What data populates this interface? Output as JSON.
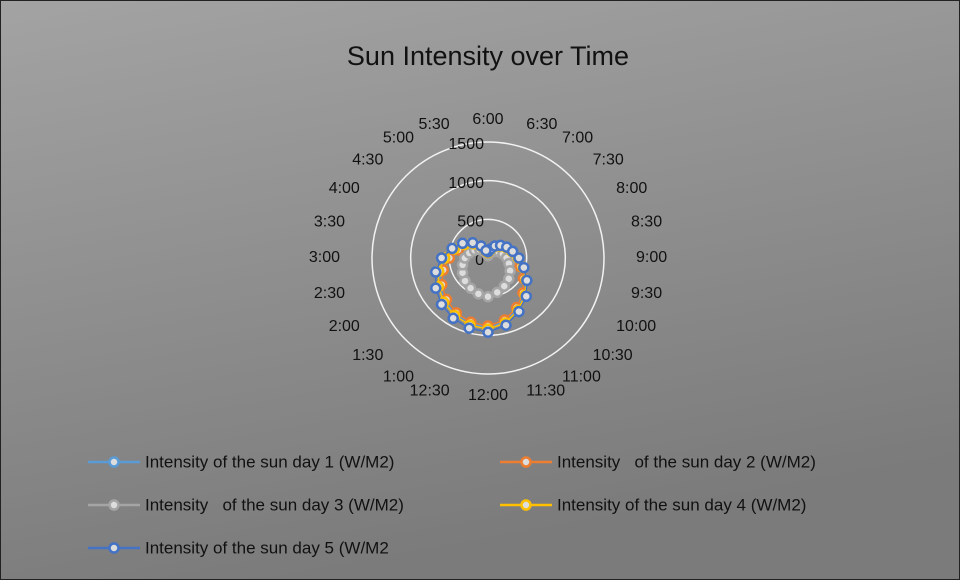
{
  "chart_data": {
    "type": "radar",
    "title": "Sun Intensity over Time",
    "categories": [
      "6:00",
      "6:30",
      "7:00",
      "7:30",
      "8:00",
      "8:30",
      "9:00",
      "9:30",
      "10:00",
      "10:30",
      "11:00",
      "11:30",
      "12:00",
      "12:30",
      "1:00",
      "1:30",
      "2:00",
      "2:30",
      "3:00",
      "3:30",
      "4:00",
      "4:30",
      "5:00",
      "5:30"
    ],
    "rlim": [
      0,
      1500
    ],
    "rticks": [
      0,
      500,
      1000,
      1500
    ],
    "grid": true,
    "series": [
      {
        "name": "Intensity of the sun day 1 (W/M2)",
        "color": "#5b9bd5",
        "values": [
          60,
          100,
          150,
          200,
          250,
          300,
          360,
          440,
          540,
          650,
          760,
          850,
          900,
          880,
          840,
          790,
          720,
          640,
          540,
          430,
          330,
          240,
          150,
          80
        ]
      },
      {
        "name": "Intensity   of the sun day 2 (W/M2)",
        "color": "#ed7d31",
        "values": [
          50,
          90,
          140,
          190,
          240,
          290,
          350,
          430,
          530,
          640,
          740,
          830,
          880,
          860,
          820,
          760,
          690,
          600,
          500,
          400,
          300,
          210,
          130,
          70
        ]
      },
      {
        "name": "Intensity   of the sun day 3 (W/M2)",
        "color": "#a5a5a5",
        "values": [
          30,
          60,
          90,
          120,
          160,
          200,
          240,
          280,
          330,
          380,
          420,
          460,
          500,
          480,
          450,
          420,
          380,
          340,
          300,
          250,
          200,
          150,
          100,
          50
        ]
      },
      {
        "name": "Intensity of the sun day 4 (W/M2)",
        "color": "#ffc000",
        "values": [
          70,
          110,
          170,
          220,
          270,
          320,
          390,
          470,
          570,
          680,
          780,
          870,
          920,
          900,
          860,
          810,
          740,
          660,
          560,
          450,
          350,
          260,
          170,
          90
        ]
      },
      {
        "name": "Intensity of the sun day 5 (W/M2",
        "color": "#4472c4",
        "values": [
          80,
          120,
          180,
          230,
          280,
          330,
          400,
          480,
          580,
          700,
          800,
          900,
          960,
          940,
          900,
          850,
          780,
          700,
          600,
          480,
          380,
          280,
          180,
          100
        ]
      }
    ]
  }
}
